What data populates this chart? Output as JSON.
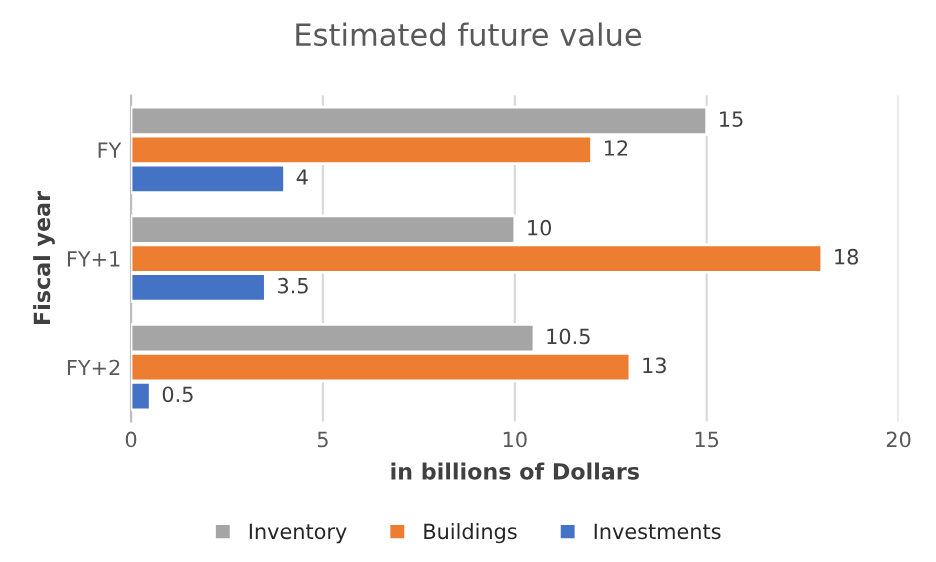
{
  "chart_data": {
    "type": "bar",
    "orientation": "horizontal",
    "title": "Estimated future value",
    "xlabel": "in billions of Dollars",
    "ylabel": "Fiscal year",
    "categories": [
      "FY",
      "FY+1",
      "FY+2"
    ],
    "series": [
      {
        "name": "Inventory",
        "color": "#a5a5a5",
        "values": [
          15,
          10,
          10.5
        ]
      },
      {
        "name": "Buildings",
        "color": "#ed7d31",
        "values": [
          12,
          18,
          13
        ]
      },
      {
        "name": "Investments",
        "color": "#4472c4",
        "values": [
          4,
          3.5,
          0.5
        ]
      }
    ],
    "xlim": [
      0,
      20
    ],
    "xticks": [
      0,
      5,
      10,
      15,
      20
    ],
    "grid": "x",
    "legend": "bottom",
    "data_labels": true
  }
}
